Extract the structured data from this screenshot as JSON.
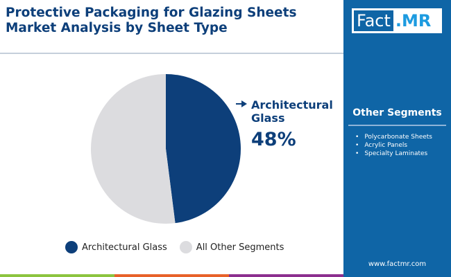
{
  "title": "Protective Packaging for Glazing Sheets Market Analysis by Sheet Type",
  "logo": {
    "part1": "Fact",
    "part2": ".MR"
  },
  "sidebar": {
    "heading": "Other Segments",
    "items": [
      "Polycarbonate Sheets",
      "Acrylic Panels",
      "Specialty Laminates"
    ],
    "url": "www.factmr.com"
  },
  "chart_data": {
    "type": "pie",
    "categories": [
      "Architectural Glass",
      "All Other Segments"
    ],
    "values": [
      48,
      52
    ],
    "colors": [
      "#0d3f7a",
      "#dcdcdf"
    ],
    "callout": {
      "label": "Architectural Glass",
      "value": "48%"
    },
    "legend": "bottom"
  },
  "colors": {
    "sidebar": "#0f65a6",
    "bottom_bars": [
      "#8cc43f",
      "#e8622a",
      "#8c2f8f"
    ]
  }
}
